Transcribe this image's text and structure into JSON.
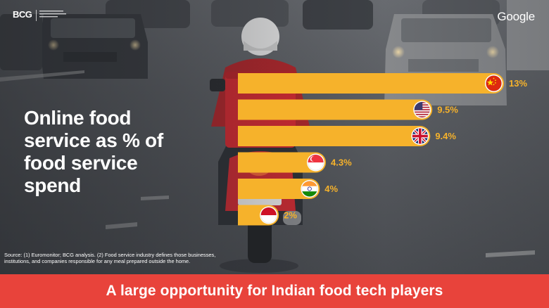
{
  "logos": {
    "bcg_main": "BCG",
    "google": "Google"
  },
  "headline": {
    "line1": "Online food",
    "line2": "service as % of",
    "line3": "food service",
    "line4": "spend"
  },
  "chart_data": {
    "type": "bar",
    "orientation": "horizontal",
    "categories": [
      "China",
      "United States",
      "United Kingdom",
      "Singapore",
      "India",
      "Indonesia"
    ],
    "values": [
      13,
      9.5,
      9.4,
      4.3,
      4,
      2
    ],
    "value_labels": [
      "13%",
      "9.5%",
      "9.4%",
      "4.3%",
      "4%",
      "2%"
    ],
    "flag_icons": [
      "china-flag-icon",
      "usa-flag-icon",
      "uk-flag-icon",
      "singapore-flag-icon",
      "india-flag-icon",
      "indonesia-flag-icon"
    ],
    "bar_color": "#f6b22b",
    "grid": false,
    "legend": "none"
  },
  "source": {
    "text": "Source: (1) Euromonitor; BCG analysis. (2) Food service industry defines those businesses, institutions, and companies responsible for any meal prepared outside the home."
  },
  "footer": {
    "text": "A large opportunity for Indian food tech players",
    "color": "#e8433b"
  }
}
